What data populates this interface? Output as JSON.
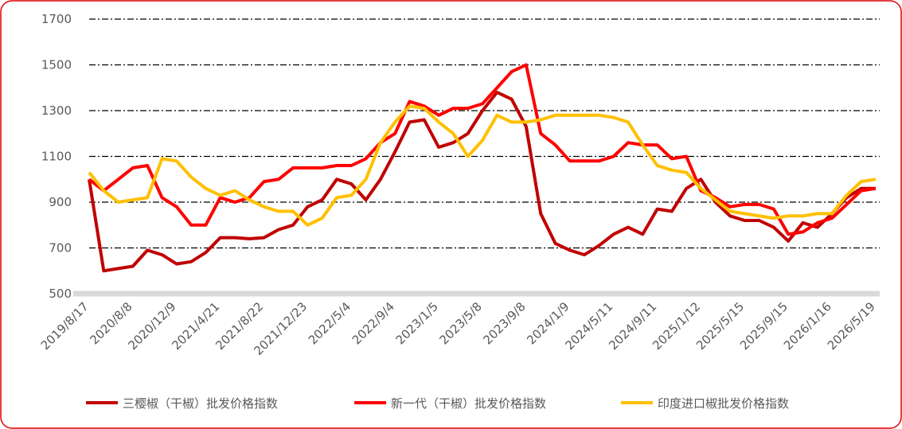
{
  "chart_data": {
    "type": "line",
    "categories": [
      "2019/8/17",
      null,
      null,
      "2020/8/8",
      null,
      null,
      "2020/12/9",
      null,
      null,
      "2021/4/21",
      null,
      null,
      "2021/8/22",
      null,
      null,
      "2021/12/23",
      null,
      null,
      "2022/5/4",
      null,
      null,
      "2022/9/4",
      null,
      null,
      "2023/1/5",
      null,
      null,
      "2023/5/8",
      null,
      null,
      "2023/9/8",
      null,
      null,
      "2024/1/9",
      null,
      null,
      "2024/5/11",
      null,
      null,
      "2024/9/11",
      null,
      null,
      "2025/1/12",
      null,
      null,
      "2025/5/15",
      null,
      null,
      "2025/9/15",
      null,
      null,
      "2026/1/16",
      null,
      null,
      "2026/5/19"
    ],
    "series": [
      {
        "name": "三樱椒（干椒）批发价格指数",
        "color": "#c00000",
        "values": [
          1000,
          600,
          610,
          620,
          690,
          670,
          630,
          640,
          680,
          745,
          745,
          740,
          745,
          780,
          800,
          880,
          910,
          1000,
          980,
          910,
          1000,
          1120,
          1250,
          1260,
          1140,
          1160,
          1200,
          1300,
          1380,
          1350,
          1230,
          850,
          720,
          690,
          670,
          710,
          760,
          790,
          760,
          870,
          860,
          960,
          1000,
          900,
          840,
          820,
          820,
          790,
          730,
          810,
          790,
          850,
          920,
          960,
          960
        ]
      },
      {
        "name": "新一代（干椒）批发价格指数",
        "color": "#ff0000",
        "values": [
          1000,
          950,
          1000,
          1050,
          1060,
          920,
          880,
          800,
          800,
          920,
          900,
          920,
          990,
          1000,
          1050,
          1050,
          1050,
          1060,
          1060,
          1090,
          1160,
          1200,
          1340,
          1320,
          1280,
          1310,
          1310,
          1330,
          1400,
          1470,
          1500,
          1200,
          1150,
          1080,
          1080,
          1080,
          1100,
          1160,
          1150,
          1150,
          1090,
          1100,
          950,
          920,
          880,
          890,
          890,
          870,
          760,
          770,
          810,
          830,
          890,
          950,
          960
        ]
      },
      {
        "name": "印度进口椒批发价格指数",
        "color": "#ffc000",
        "values": [
          1030,
          950,
          900,
          910,
          920,
          1090,
          1080,
          1010,
          960,
          930,
          950,
          910,
          880,
          860,
          860,
          800,
          830,
          920,
          930,
          1000,
          1160,
          1250,
          1320,
          1310,
          1250,
          1200,
          1100,
          1170,
          1280,
          1250,
          1250,
          1260,
          1280,
          1280,
          1280,
          1280,
          1270,
          1250,
          1150,
          1060,
          1040,
          1030,
          960,
          910,
          860,
          850,
          840,
          830,
          840,
          840,
          850,
          850,
          930,
          990,
          1000
        ]
      }
    ],
    "ylim": [
      500,
      1700
    ],
    "yticks": [
      500,
      700,
      900,
      1100,
      1300,
      1500,
      1700
    ],
    "grid": true,
    "legend": "bottom"
  }
}
